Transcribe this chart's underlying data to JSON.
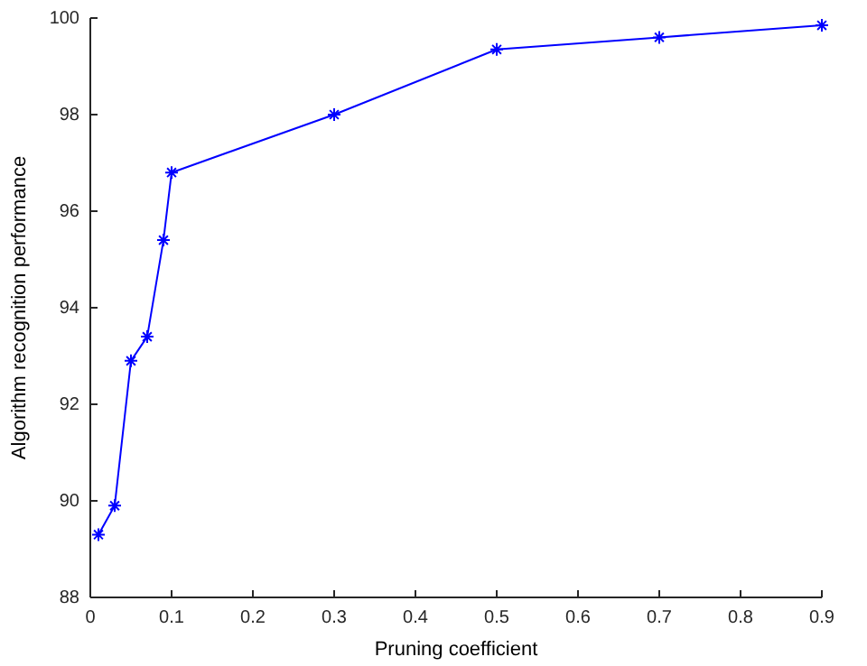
{
  "chart_data": {
    "type": "line",
    "xlabel": "Pruning coefficient",
    "ylabel": "Algorithm recognition performance",
    "x": [
      0.01,
      0.03,
      0.05,
      0.07,
      0.09,
      0.1,
      0.3,
      0.5,
      0.7,
      0.9
    ],
    "series": [
      {
        "color": "#0000ff",
        "values": [
          89.3,
          89.9,
          92.9,
          93.4,
          95.4,
          96.8,
          98.0,
          99.35,
          99.6,
          99.85
        ]
      }
    ],
    "xlim": [
      0,
      0.9
    ],
    "xticks": [
      0,
      0.1,
      0.2,
      0.3,
      0.4,
      0.5,
      0.6,
      0.7,
      0.8,
      0.9
    ],
    "ylim": [
      88,
      100
    ],
    "yticks": [
      88,
      90,
      92,
      94,
      96,
      98,
      100
    ],
    "marker": "cross",
    "line_style": "solid",
    "grid": false
  }
}
